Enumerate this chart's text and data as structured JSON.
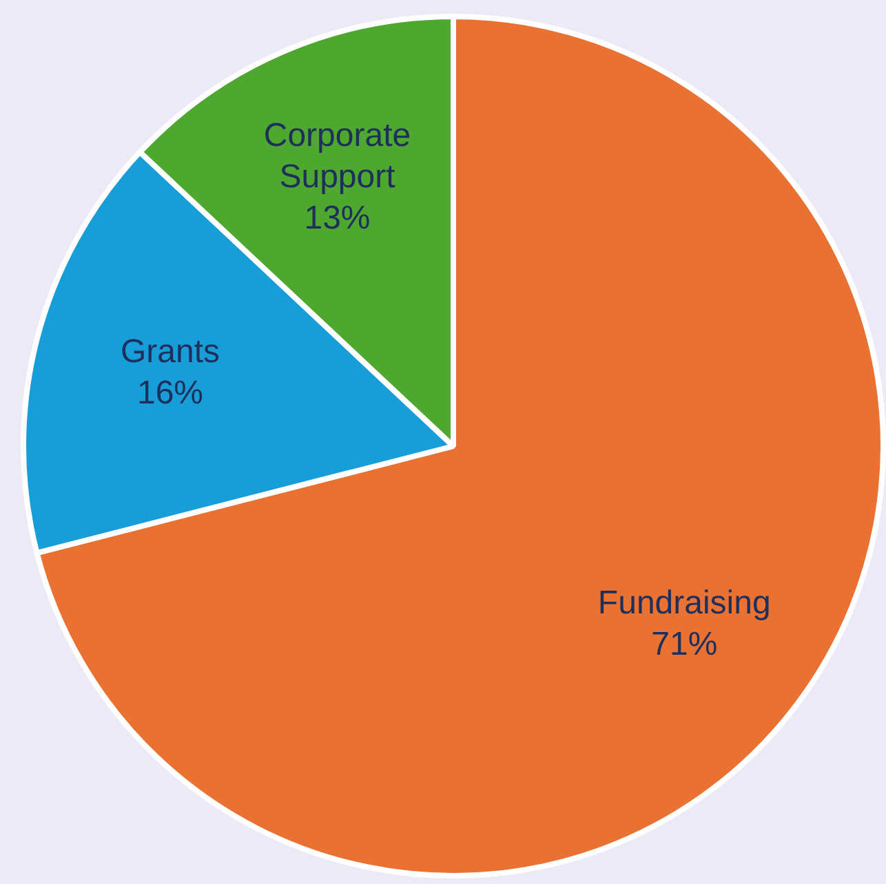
{
  "chart_data": {
    "type": "pie",
    "categories": [
      "Fundraising",
      "Grants",
      "Corporate Support"
    ],
    "values": [
      71,
      16,
      13
    ],
    "colors": [
      "#e97132",
      "#179ed8",
      "#4ea72e"
    ],
    "value_labels": [
      "71%",
      "16%",
      "13%"
    ],
    "legend": false
  }
}
